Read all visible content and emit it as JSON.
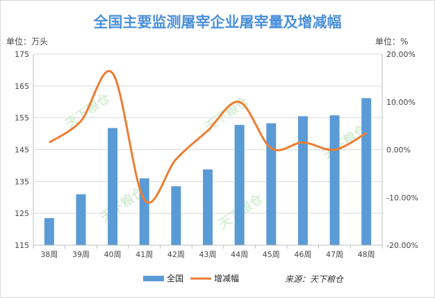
{
  "chart_data": {
    "type": "bar+line",
    "title": "全国主要监测屠宰企业屠宰量及增减幅",
    "left_unit": "单位：万头",
    "right_unit": "单位：%",
    "categories": [
      "38周",
      "39周",
      "40周",
      "41周",
      "42周",
      "43周",
      "44周",
      "45周",
      "46周",
      "47周",
      "48周"
    ],
    "y_left": {
      "ticks": [
        115,
        125,
        135,
        145,
        155,
        165,
        175
      ],
      "range": [
        115,
        175
      ]
    },
    "y_right": {
      "ticks": [
        "20.00%",
        "10.00%",
        "0.00%",
        "-10.00%",
        "-20.00%"
      ],
      "range": [
        -20,
        20
      ]
    },
    "series": [
      {
        "name": "全国",
        "type": "bar",
        "axis": "left",
        "color": "#5b9bd5",
        "values": [
          123.5,
          131.0,
          151.8,
          136.0,
          133.5,
          138.8,
          152.8,
          153.3,
          155.5,
          155.8,
          161.2
        ]
      },
      {
        "name": "增减幅",
        "type": "line",
        "axis": "right",
        "color": "#ed7d31",
        "values": [
          1.5,
          6.0,
          16.0,
          -10.5,
          -2.0,
          4.0,
          10.0,
          0.3,
          1.5,
          0.0,
          3.5
        ]
      }
    ],
    "legend_position": "bottom-center",
    "grid": "horizontal",
    "source": "来源：天下粮仓",
    "watermark": "天下粮仓"
  }
}
